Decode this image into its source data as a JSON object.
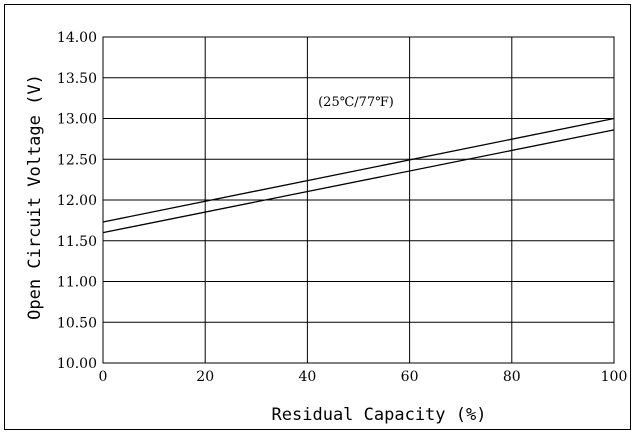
{
  "chart_data": {
    "type": "line",
    "xlabel": "Residual Capacity (%)",
    "ylabel": "Open Circuit Voltage (V)",
    "annotation": "(25℃/77℉)",
    "xlim": [
      0,
      100
    ],
    "ylim": [
      10.0,
      14.0
    ],
    "x_ticks": [
      "0",
      "20",
      "40",
      "60",
      "80",
      "100"
    ],
    "y_ticks": [
      "10.00",
      "10.50",
      "11.00",
      "11.50",
      "12.00",
      "12.50",
      "13.00",
      "13.50",
      "14.00"
    ],
    "grid": true,
    "series": [
      {
        "x": [
          0,
          100
        ],
        "y": [
          11.73,
          13.0
        ]
      },
      {
        "x": [
          0,
          100
        ],
        "y": [
          11.6,
          12.86
        ]
      }
    ]
  }
}
